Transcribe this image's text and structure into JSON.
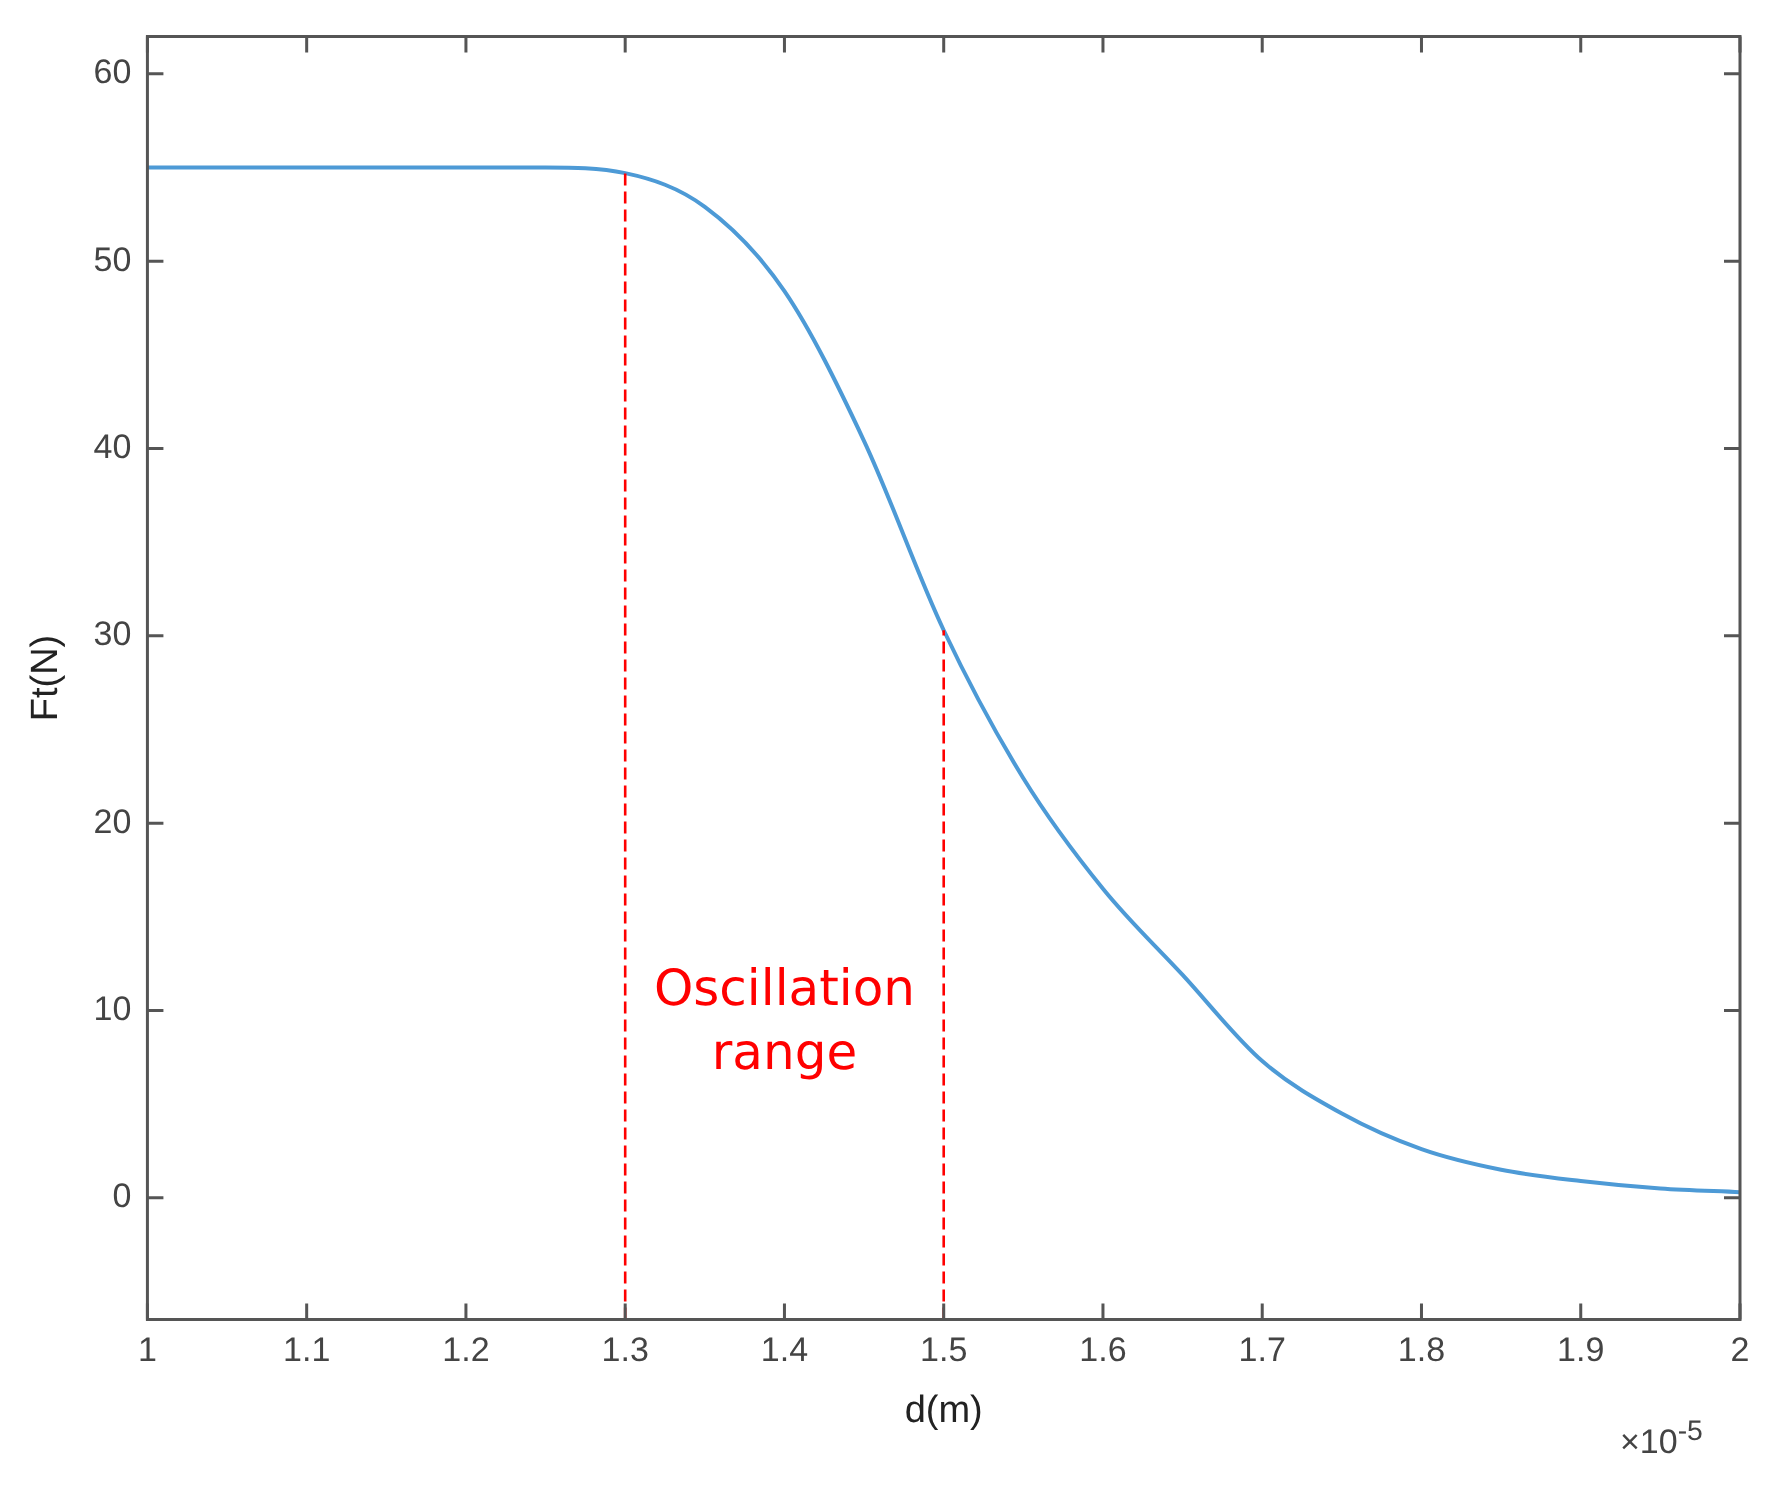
{
  "chart_data": {
    "type": "line",
    "xlabel": "d(m)",
    "ylabel": "Ft(N)",
    "x": [
      1,
      1.1,
      1.2,
      1.25,
      1.3,
      1.35,
      1.4,
      1.45,
      1.5,
      1.55,
      1.6,
      1.65,
      1.7,
      1.75,
      1.8,
      1.85,
      1.9,
      1.95,
      2
    ],
    "series": [
      {
        "color": "#4d9ad6",
        "values": [
          55,
          55,
          55,
          55,
          54.7,
          52.9,
          48.4,
          40.4,
          30.3,
          22.4,
          16.5,
          11.9,
          7.3,
          4.5,
          2.6,
          1.5,
          0.9,
          0.5,
          0.3
        ]
      }
    ],
    "xlim": [
      1,
      2
    ],
    "xticks": [
      1,
      1.1,
      1.2,
      1.3,
      1.4,
      1.5,
      1.6,
      1.7,
      1.8,
      1.9,
      2
    ],
    "ylim": [
      -6.5,
      62
    ],
    "yticks": [
      0,
      10,
      20,
      30,
      40,
      50,
      60
    ],
    "grid": false,
    "legend": false,
    "marker": "none",
    "line_style": "solid",
    "ref_lines": [
      {
        "axis": "x",
        "value": 1.3,
        "color": "#ff0000",
        "line_style": "dashed"
      },
      {
        "axis": "x",
        "value": 1.5,
        "color": "#ff0000",
        "line_style": "dashed"
      }
    ],
    "annotations": [
      "Oscillation range",
      "×10$^{-5}$"
    ]
  }
}
